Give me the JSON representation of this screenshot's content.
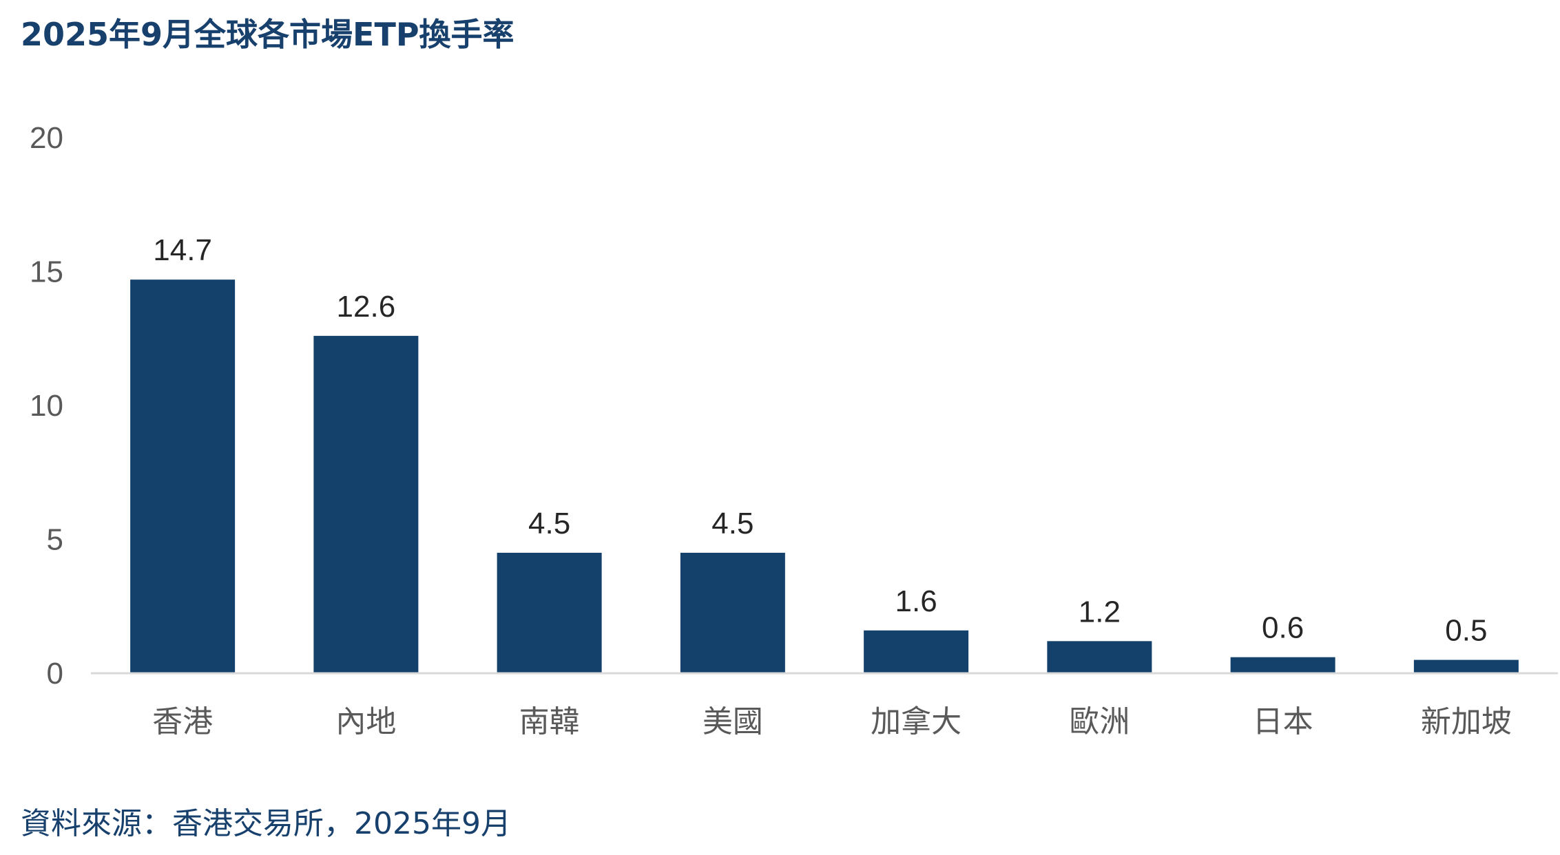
{
  "chart_data": {
    "type": "bar",
    "title": "2025年9月全球各市場ETP換手率",
    "categories": [
      "香港",
      "內地",
      "南韓",
      "美國",
      "加拿大",
      "歐洲",
      "日本",
      "新加坡"
    ],
    "values": [
      14.7,
      12.6,
      4.5,
      4.5,
      1.6,
      1.2,
      0.6,
      0.5
    ],
    "value_labels": [
      "14.7",
      "12.6",
      "4.5",
      "4.5",
      "1.6",
      "1.2",
      "0.6",
      "0.5"
    ],
    "xlabel": "",
    "ylabel": "",
    "ylim": [
      0,
      20
    ],
    "yticks": [
      0,
      5,
      10,
      15,
      20
    ],
    "ytick_labels": [
      "0",
      "5",
      "10",
      "15",
      "20"
    ],
    "grid": false,
    "legend": "none",
    "colors": {
      "bar": "#14416b",
      "title": "#17406d",
      "source": "#17406d",
      "axis_line": "#d9d9d9",
      "tick_label": "#595959",
      "value_label": "#262626"
    }
  },
  "source": "資料來源：香港交易所，2025年9月"
}
